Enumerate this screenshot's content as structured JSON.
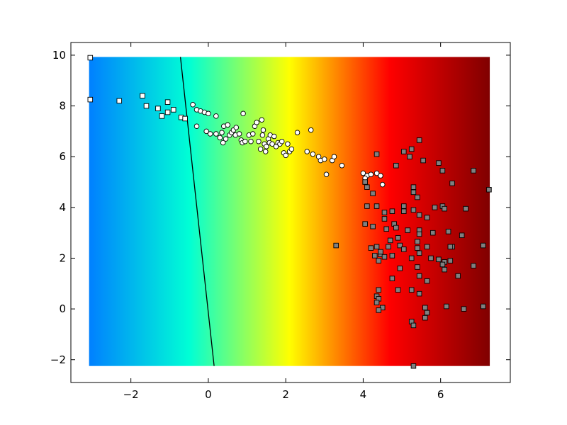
{
  "chart_data": {
    "type": "scatter",
    "title": "",
    "xlabel": "",
    "ylabel": "",
    "xlim": [
      -3.55,
      7.8
    ],
    "ylim": [
      -2.9,
      10.5
    ],
    "xticks": [
      -2,
      0,
      2,
      4,
      6
    ],
    "yticks": [
      -2,
      0,
      2,
      4,
      6,
      8,
      10
    ],
    "xtick_labels": [
      "−2",
      "0",
      "2",
      "4",
      "6"
    ],
    "ytick_labels": [
      "−2",
      "0",
      "2",
      "4",
      "6",
      "8",
      "10"
    ],
    "grid": false,
    "background": {
      "type": "heatmap",
      "x_range": [
        -3.08,
        7.27
      ],
      "y_range": [
        -2.25,
        9.93
      ],
      "colormap": "jet",
      "colors": [
        "#0080ff",
        "#00ffd5",
        "#ffff00",
        "#ff0000",
        "#800000"
      ]
    },
    "decision_boundary": {
      "x": [
        -0.72,
        0.15
      ],
      "y": [
        9.93,
        -2.25
      ],
      "color": "#000000"
    },
    "series": [
      {
        "marker": "square",
        "fill": "#ffffff",
        "points": [
          [
            -3.05,
            9.9
          ],
          [
            -3.05,
            8.25
          ],
          [
            -2.3,
            8.2
          ],
          [
            -1.7,
            8.4
          ],
          [
            -1.6,
            8.0
          ],
          [
            -1.3,
            7.9
          ],
          [
            -1.2,
            7.6
          ],
          [
            -1.05,
            8.15
          ],
          [
            -1.05,
            7.75
          ],
          [
            -0.9,
            7.85
          ],
          [
            -0.7,
            7.55
          ],
          [
            -0.6,
            7.5
          ]
        ]
      },
      {
        "marker": "circle",
        "fill": "#ffffff",
        "points": [
          [
            -0.4,
            8.05
          ],
          [
            -0.3,
            7.85
          ],
          [
            -0.2,
            7.8
          ],
          [
            -0.1,
            7.75
          ],
          [
            -0.3,
            7.2
          ],
          [
            0.0,
            7.7
          ],
          [
            0.2,
            7.6
          ],
          [
            -0.05,
            7.0
          ],
          [
            0.05,
            6.9
          ],
          [
            0.2,
            6.9
          ],
          [
            0.3,
            6.75
          ],
          [
            0.35,
            6.95
          ],
          [
            0.38,
            6.55
          ],
          [
            0.4,
            7.2
          ],
          [
            0.45,
            6.7
          ],
          [
            0.5,
            7.25
          ],
          [
            0.55,
            6.85
          ],
          [
            0.6,
            6.95
          ],
          [
            0.65,
            7.05
          ],
          [
            0.7,
            6.85
          ],
          [
            0.72,
            7.15
          ],
          [
            0.8,
            6.9
          ],
          [
            0.85,
            6.65
          ],
          [
            0.88,
            6.55
          ],
          [
            0.9,
            7.7
          ],
          [
            0.95,
            6.6
          ],
          [
            1.05,
            6.85
          ],
          [
            1.1,
            6.6
          ],
          [
            1.15,
            6.9
          ],
          [
            1.2,
            7.2
          ],
          [
            1.25,
            7.35
          ],
          [
            1.3,
            6.6
          ],
          [
            1.35,
            6.3
          ],
          [
            1.38,
            7.45
          ],
          [
            1.4,
            6.85
          ],
          [
            1.42,
            7.05
          ],
          [
            1.45,
            6.5
          ],
          [
            1.48,
            6.2
          ],
          [
            1.5,
            6.4
          ],
          [
            1.55,
            6.7
          ],
          [
            1.58,
            6.55
          ],
          [
            1.6,
            6.85
          ],
          [
            1.65,
            6.5
          ],
          [
            1.7,
            6.8
          ],
          [
            1.75,
            6.4
          ],
          [
            1.8,
            6.55
          ],
          [
            1.85,
            6.5
          ],
          [
            1.9,
            6.6
          ],
          [
            1.95,
            6.15
          ],
          [
            2.0,
            6.05
          ],
          [
            2.05,
            6.5
          ],
          [
            2.1,
            6.2
          ],
          [
            2.15,
            6.3
          ],
          [
            2.3,
            6.95
          ],
          [
            2.55,
            6.2
          ],
          [
            2.65,
            7.05
          ],
          [
            2.7,
            6.1
          ],
          [
            2.85,
            6.0
          ],
          [
            2.9,
            5.85
          ],
          [
            3.0,
            5.9
          ],
          [
            3.05,
            5.3
          ],
          [
            3.2,
            5.85
          ],
          [
            3.25,
            6.0
          ],
          [
            3.45,
            5.65
          ],
          [
            4.0,
            5.35
          ],
          [
            4.1,
            5.25
          ],
          [
            4.2,
            5.3
          ],
          [
            4.35,
            5.35
          ],
          [
            4.45,
            5.25
          ],
          [
            4.5,
            4.9
          ],
          [
            4.05,
            5.15
          ]
        ]
      },
      {
        "marker": "square",
        "fill": "#808080",
        "points": [
          [
            4.35,
            6.1
          ],
          [
            5.05,
            6.2
          ],
          [
            5.25,
            6.3
          ],
          [
            5.2,
            6.0
          ],
          [
            5.45,
            6.65
          ],
          [
            5.55,
            5.85
          ],
          [
            5.95,
            5.75
          ],
          [
            6.05,
            5.45
          ],
          [
            6.85,
            5.45
          ],
          [
            7.25,
            4.7
          ],
          [
            4.85,
            5.65
          ],
          [
            4.05,
            5.0
          ],
          [
            4.1,
            4.8
          ],
          [
            4.25,
            4.55
          ],
          [
            5.3,
            4.8
          ],
          [
            5.3,
            4.6
          ],
          [
            5.4,
            4.4
          ],
          [
            6.3,
            4.95
          ],
          [
            4.1,
            4.05
          ],
          [
            4.35,
            4.05
          ],
          [
            4.55,
            3.8
          ],
          [
            4.75,
            3.85
          ],
          [
            5.05,
            4.05
          ],
          [
            5.05,
            3.85
          ],
          [
            5.3,
            3.9
          ],
          [
            5.45,
            3.7
          ],
          [
            5.65,
            3.6
          ],
          [
            5.85,
            4.0
          ],
          [
            6.05,
            4.05
          ],
          [
            6.1,
            3.95
          ],
          [
            6.65,
            3.95
          ],
          [
            4.55,
            3.55
          ],
          [
            4.05,
            3.35
          ],
          [
            4.25,
            3.25
          ],
          [
            4.6,
            3.15
          ],
          [
            4.8,
            3.35
          ],
          [
            4.85,
            3.2
          ],
          [
            5.15,
            3.1
          ],
          [
            5.45,
            3.1
          ],
          [
            5.45,
            2.95
          ],
          [
            5.8,
            3.0
          ],
          [
            6.2,
            3.05
          ],
          [
            6.55,
            2.9
          ],
          [
            4.9,
            2.8
          ],
          [
            4.7,
            2.7
          ],
          [
            5.4,
            2.65
          ],
          [
            6.3,
            2.45
          ],
          [
            3.3,
            2.5
          ],
          [
            4.2,
            2.4
          ],
          [
            4.35,
            2.45
          ],
          [
            4.65,
            2.45
          ],
          [
            4.95,
            2.5
          ],
          [
            5.05,
            2.35
          ],
          [
            5.4,
            2.4
          ],
          [
            5.65,
            2.45
          ],
          [
            6.25,
            2.45
          ],
          [
            7.1,
            2.5
          ],
          [
            4.3,
            2.1
          ],
          [
            4.45,
            2.15
          ],
          [
            4.45,
            2.25
          ],
          [
            4.55,
            2.05
          ],
          [
            4.75,
            2.1
          ],
          [
            5.25,
            2.0
          ],
          [
            5.45,
            2.2
          ],
          [
            5.75,
            2.0
          ],
          [
            5.95,
            1.95
          ],
          [
            6.1,
            1.85
          ],
          [
            6.25,
            1.9
          ],
          [
            4.4,
            1.9
          ],
          [
            4.95,
            1.6
          ],
          [
            5.4,
            1.65
          ],
          [
            6.05,
            1.75
          ],
          [
            6.1,
            1.55
          ],
          [
            6.85,
            1.7
          ],
          [
            4.75,
            1.2
          ],
          [
            5.45,
            1.3
          ],
          [
            5.65,
            1.1
          ],
          [
            6.45,
            1.3
          ],
          [
            4.4,
            0.75
          ],
          [
            4.9,
            0.75
          ],
          [
            5.25,
            0.75
          ],
          [
            5.45,
            0.6
          ],
          [
            4.35,
            0.5
          ],
          [
            4.4,
            0.4
          ],
          [
            4.35,
            0.25
          ],
          [
            4.5,
            0.05
          ],
          [
            4.4,
            -0.05
          ],
          [
            6.15,
            0.1
          ],
          [
            6.6,
            0.0
          ],
          [
            7.1,
            0.1
          ],
          [
            5.6,
            0.05
          ],
          [
            5.65,
            -0.15
          ],
          [
            5.6,
            -0.35
          ],
          [
            5.25,
            -0.5
          ],
          [
            5.3,
            -0.65
          ],
          [
            5.3,
            -2.25
          ]
        ]
      }
    ]
  }
}
